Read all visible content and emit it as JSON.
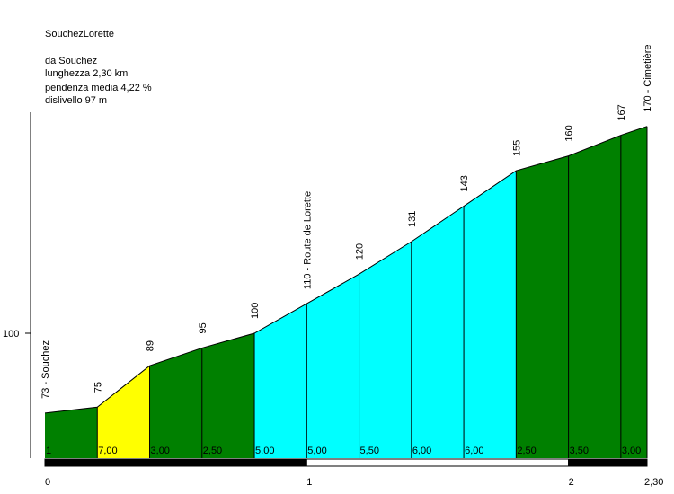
{
  "title": "SouchezLorette",
  "info": {
    "from": "da Souchez",
    "length": "lunghezza 2,30 km",
    "avg_gradient": "pendenza media 4,22 %",
    "elevation_gain": "dislivello 97 m"
  },
  "chart_data": {
    "type": "area",
    "title": "SouchezLorette",
    "xlabel": "",
    "ylabel": "",
    "x_unit": "km",
    "y_unit": "m",
    "xlim": [
      0,
      2.3
    ],
    "y_ticks": [
      {
        "value": 100,
        "label": "100"
      }
    ],
    "x_ticks": [
      {
        "value": 0,
        "label": "0"
      },
      {
        "value": 1,
        "label": "1"
      },
      {
        "value": 2,
        "label": "2"
      },
      {
        "value": 2.3,
        "label": "2,30"
      }
    ],
    "points": [
      {
        "x": 0,
        "y": 73,
        "label": "73 - Souchez"
      },
      {
        "x": 0.2,
        "y": 75,
        "label": "75"
      },
      {
        "x": 0.4,
        "y": 89,
        "label": "89"
      },
      {
        "x": 0.6,
        "y": 95,
        "label": "95"
      },
      {
        "x": 0.8,
        "y": 100,
        "label": "100"
      },
      {
        "x": 1.0,
        "y": 110,
        "label": "110 - Route de Lorette"
      },
      {
        "x": 1.2,
        "y": 120,
        "label": "120"
      },
      {
        "x": 1.4,
        "y": 131,
        "label": "131"
      },
      {
        "x": 1.6,
        "y": 143,
        "label": "143"
      },
      {
        "x": 1.8,
        "y": 155,
        "label": "155"
      },
      {
        "x": 2.0,
        "y": 160,
        "label": "160"
      },
      {
        "x": 2.2,
        "y": 167,
        "label": "167"
      },
      {
        "x": 2.3,
        "y": 170,
        "label": "170 - Cimetière"
      }
    ],
    "segments": [
      {
        "gradient": "1",
        "color": "#008000"
      },
      {
        "gradient": "7,00",
        "color": "#ffff00"
      },
      {
        "gradient": "3,00",
        "color": "#008000"
      },
      {
        "gradient": "2,50",
        "color": "#008000"
      },
      {
        "gradient": "5,00",
        "color": "#00ffff"
      },
      {
        "gradient": "5,00",
        "color": "#00ffff"
      },
      {
        "gradient": "5,50",
        "color": "#00ffff"
      },
      {
        "gradient": "6,00",
        "color": "#00ffff"
      },
      {
        "gradient": "6,00",
        "color": "#00ffff"
      },
      {
        "gradient": "2,50",
        "color": "#008000"
      },
      {
        "gradient": "3,50",
        "color": "#008000"
      },
      {
        "gradient": "3,00",
        "color": "#008000"
      }
    ],
    "grid": false,
    "legend": "none"
  }
}
